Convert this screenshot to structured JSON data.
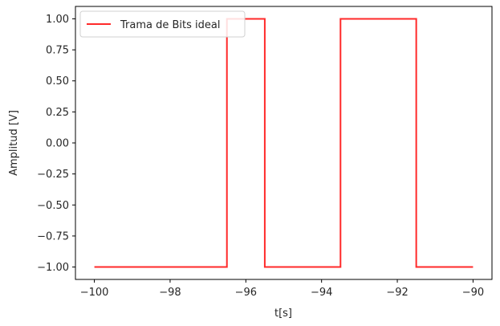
{
  "chart_data": {
    "type": "line",
    "title": "",
    "xlabel": "t[s]",
    "ylabel": "Amplitud [V]",
    "xlim": [
      -100.5,
      -89.5
    ],
    "ylim": [
      -1.1,
      1.1
    ],
    "x_ticks": [
      -100,
      -98,
      -96,
      -94,
      -92,
      -90
    ],
    "x_tick_labels": [
      "−100",
      "−98",
      "−96",
      "−94",
      "−92",
      "−90"
    ],
    "y_ticks": [
      1.0,
      0.75,
      0.5,
      0.25,
      0.0,
      -0.25,
      -0.5,
      -0.75,
      -1.0
    ],
    "y_tick_labels": [
      "1.00",
      "0.75",
      "0.50",
      "0.25",
      "0.00",
      "−0.25",
      "−0.50",
      "−0.75",
      "−1.00"
    ],
    "grid": false,
    "legend_position": "upper-left",
    "series": [
      {
        "name": "Trama de Bits ideal",
        "color": "#ff2a2a",
        "x": [
          -100,
          -96.5,
          -96.5,
          -95.5,
          -95.5,
          -93.5,
          -93.5,
          -91.5,
          -91.5,
          -90
        ],
        "y": [
          -1,
          -1,
          1,
          1,
          -1,
          -1,
          1,
          1,
          -1,
          -1
        ]
      }
    ]
  }
}
